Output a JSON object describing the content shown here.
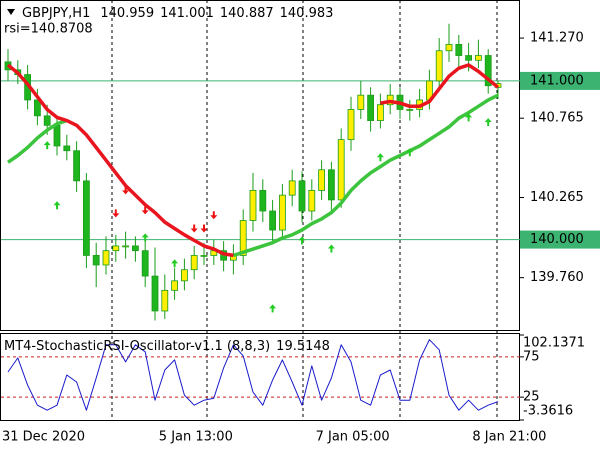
{
  "chart_data": [
    {
      "type": "candlestick",
      "title": "GBPJPY,H1",
      "annotation": "rsi=140.8708",
      "categories": [
        "31 Dec 2020",
        null,
        null,
        null,
        null,
        null,
        null,
        null,
        null,
        null,
        null,
        null,
        null,
        null,
        null,
        null,
        "5 Jan 13:00",
        null,
        null,
        null,
        null,
        null,
        null,
        null,
        null,
        null,
        null,
        null,
        null,
        null,
        null,
        null,
        "7 Jan 05:00",
        null,
        null,
        null,
        null,
        null,
        null,
        null,
        null,
        null,
        null,
        null,
        null,
        null,
        null,
        null,
        "8 Jan 21:00",
        null,
        null
      ],
      "open": [
        141.12,
        141.07,
        141.04,
        140.88,
        140.78,
        140.72,
        140.59,
        140.56,
        140.37,
        139.9,
        139.84,
        139.93,
        139.96,
        139.96,
        139.93,
        139.77,
        139.55,
        139.68,
        139.74,
        139.81,
        139.9,
        139.9,
        139.93,
        139.87,
        139.9,
        140.12,
        140.31,
        140.18,
        140.06,
        140.28,
        140.37,
        140.18,
        140.31,
        140.44,
        140.25,
        140.63,
        140.82,
        140.91,
        140.75,
        140.85,
        140.91,
        140.82,
        140.82,
        140.88,
        141.0,
        141.19,
        141.23,
        141.16,
        141.13,
        141.16,
        140.959
      ],
      "high": [
        141.2,
        141.13,
        141.1,
        140.95,
        140.85,
        140.78,
        140.66,
        140.62,
        140.42,
        139.98,
        140.02,
        140.03,
        140.05,
        140.02,
        140.0,
        139.95,
        139.78,
        139.82,
        139.88,
        139.96,
        139.98,
        140.0,
        139.99,
        139.97,
        140.19,
        140.42,
        140.38,
        140.25,
        140.35,
        140.44,
        140.43,
        140.38,
        140.5,
        140.49,
        140.7,
        140.9,
        141.0,
        140.96,
        140.92,
        140.98,
        140.96,
        140.88,
        140.95,
        141.07,
        141.27,
        141.36,
        141.29,
        141.24,
        141.26,
        141.2,
        141.001
      ],
      "low": [
        141.0,
        140.98,
        140.82,
        140.72,
        140.66,
        140.53,
        140.5,
        140.3,
        139.82,
        139.7,
        139.78,
        139.86,
        139.88,
        139.86,
        139.7,
        139.49,
        139.5,
        139.62,
        139.68,
        139.75,
        139.84,
        139.84,
        139.8,
        139.78,
        139.84,
        140.05,
        140.11,
        139.98,
        140.0,
        140.21,
        140.11,
        140.12,
        140.25,
        140.18,
        140.2,
        140.56,
        140.76,
        140.68,
        140.7,
        140.79,
        140.76,
        140.75,
        140.77,
        140.82,
        140.94,
        141.12,
        141.09,
        141.06,
        141.08,
        140.92,
        140.887
      ],
      "close": [
        141.07,
        141.04,
        140.88,
        140.78,
        140.72,
        140.59,
        140.56,
        140.37,
        139.9,
        139.84,
        139.93,
        139.96,
        139.96,
        139.93,
        139.77,
        139.55,
        139.68,
        139.74,
        139.81,
        139.9,
        139.9,
        139.93,
        139.87,
        139.9,
        140.12,
        140.31,
        140.18,
        140.06,
        140.28,
        140.37,
        140.18,
        140.31,
        140.44,
        140.25,
        140.63,
        140.82,
        140.91,
        140.75,
        140.85,
        140.91,
        140.82,
        140.82,
        140.88,
        141.0,
        141.19,
        141.23,
        141.16,
        141.13,
        141.16,
        140.97,
        140.983
      ],
      "candle_colors": {
        "wick": "#1a9c1a",
        "up": "#ffee00",
        "down": "#1fb51f"
      },
      "series": [
        {
          "color": "#3cc43c",
          "values": [
            140.487,
            140.53,
            140.58,
            140.64,
            140.69,
            140.73,
            140.75,
            null,
            null,
            null,
            null,
            null,
            null,
            null,
            null,
            null,
            null,
            null,
            null,
            null,
            null,
            null,
            null,
            139.9,
            139.92,
            139.94,
            139.96,
            139.98,
            140.01,
            140.03,
            140.06,
            140.1,
            140.13,
            140.17,
            140.23,
            140.31,
            140.37,
            140.42,
            140.46,
            140.5,
            140.53,
            140.56,
            140.59,
            140.63,
            140.67,
            140.71,
            140.765,
            140.8,
            140.84,
            140.88,
            140.91
          ]
        },
        {
          "color": "#e8141e",
          "values": [
            141.1,
            141.05,
            140.98,
            140.9,
            140.82,
            140.77,
            140.75,
            140.72,
            140.66,
            140.58,
            140.5,
            140.42,
            140.34,
            140.28,
            140.22,
            140.17,
            140.11,
            140.07,
            140.03,
            139.995,
            139.96,
            139.94,
            139.91,
            139.9,
            null,
            null,
            null,
            null,
            null,
            null,
            null,
            null,
            null,
            null,
            null,
            null,
            null,
            null,
            140.86,
            140.87,
            140.86,
            140.84,
            140.84,
            140.87,
            140.95,
            141.03,
            141.08,
            141.1,
            141.06,
            141.01,
            140.96
          ]
        }
      ],
      "up_arrows": {
        "color": "#22cc22",
        "values": [
          null,
          null,
          null,
          null,
          140.595,
          140.216,
          null,
          null,
          null,
          null,
          null,
          null,
          null,
          null,
          140.014,
          null,
          null,
          139.85,
          null,
          null,
          null,
          null,
          null,
          null,
          null,
          null,
          null,
          139.566,
          null,
          null,
          139.995,
          null,
          null,
          139.944,
          null,
          null,
          null,
          null,
          140.519,
          null,
          null,
          140.55,
          null,
          null,
          null,
          null,
          null,
          140.77,
          null,
          140.74,
          null
        ]
      },
      "down_arrows": {
        "color": "#ee1111",
        "values": [
          null,
          null,
          null,
          null,
          null,
          null,
          null,
          null,
          null,
          null,
          null,
          140.165,
          140.31,
          null,
          140.184,
          null,
          null,
          null,
          null,
          140.07,
          140.07,
          140.153,
          null,
          null,
          null,
          null,
          null,
          null,
          null,
          null,
          null,
          null,
          null,
          null,
          null,
          null,
          null,
          null,
          null,
          null,
          null,
          null,
          null,
          null,
          null,
          null,
          null,
          null,
          null,
          null,
          null
        ]
      },
      "ylim": [
        139.43,
        141.51
      ],
      "yticks": [
        {
          "value": 141.27,
          "label": "141.270"
        },
        140.765,
        140.265,
        {
          "value": 139.76,
          "label": "139.760"
        }
      ],
      "levels": [
        {
          "value": 141,
          "label": "141.000"
        },
        {
          "value": 140,
          "label": "140.000"
        }
      ],
      "level_color": "#3cb371"
    },
    {
      "type": "line",
      "title": "MT4-StochasticRSI-Oscillator-v1.1 (8,8,3)",
      "series": [
        {
          "color": "#1a1acc",
          "values": [
            56.25,
            73.75,
            40,
            15,
            8.75,
            15,
            52.5,
            43.75,
            8.75,
            48.75,
            90,
            90,
            68.75,
            90,
            81.25,
            21.25,
            58.75,
            71.25,
            27.5,
            15,
            21.25,
            23.75,
            61.25,
            90,
            76.25,
            31.25,
            15,
            46.25,
            71.25,
            43.75,
            15,
            63.75,
            21.25,
            48.75,
            90,
            68.75,
            21.25,
            15,
            52.5,
            58.75,
            21.25,
            21.25,
            71.25,
            96.25,
            83.75,
            27.5,
            8.75,
            21.25,
            8.75,
            15,
            19.5148
          ]
        }
      ],
      "ylim": [
        -3.3616,
        102.1371
      ],
      "yticks": [
        102.1371,
        75,
        25,
        -3.3616
      ],
      "levels": [
        75,
        25
      ],
      "level_color": "#cc2222"
    }
  ]
}
